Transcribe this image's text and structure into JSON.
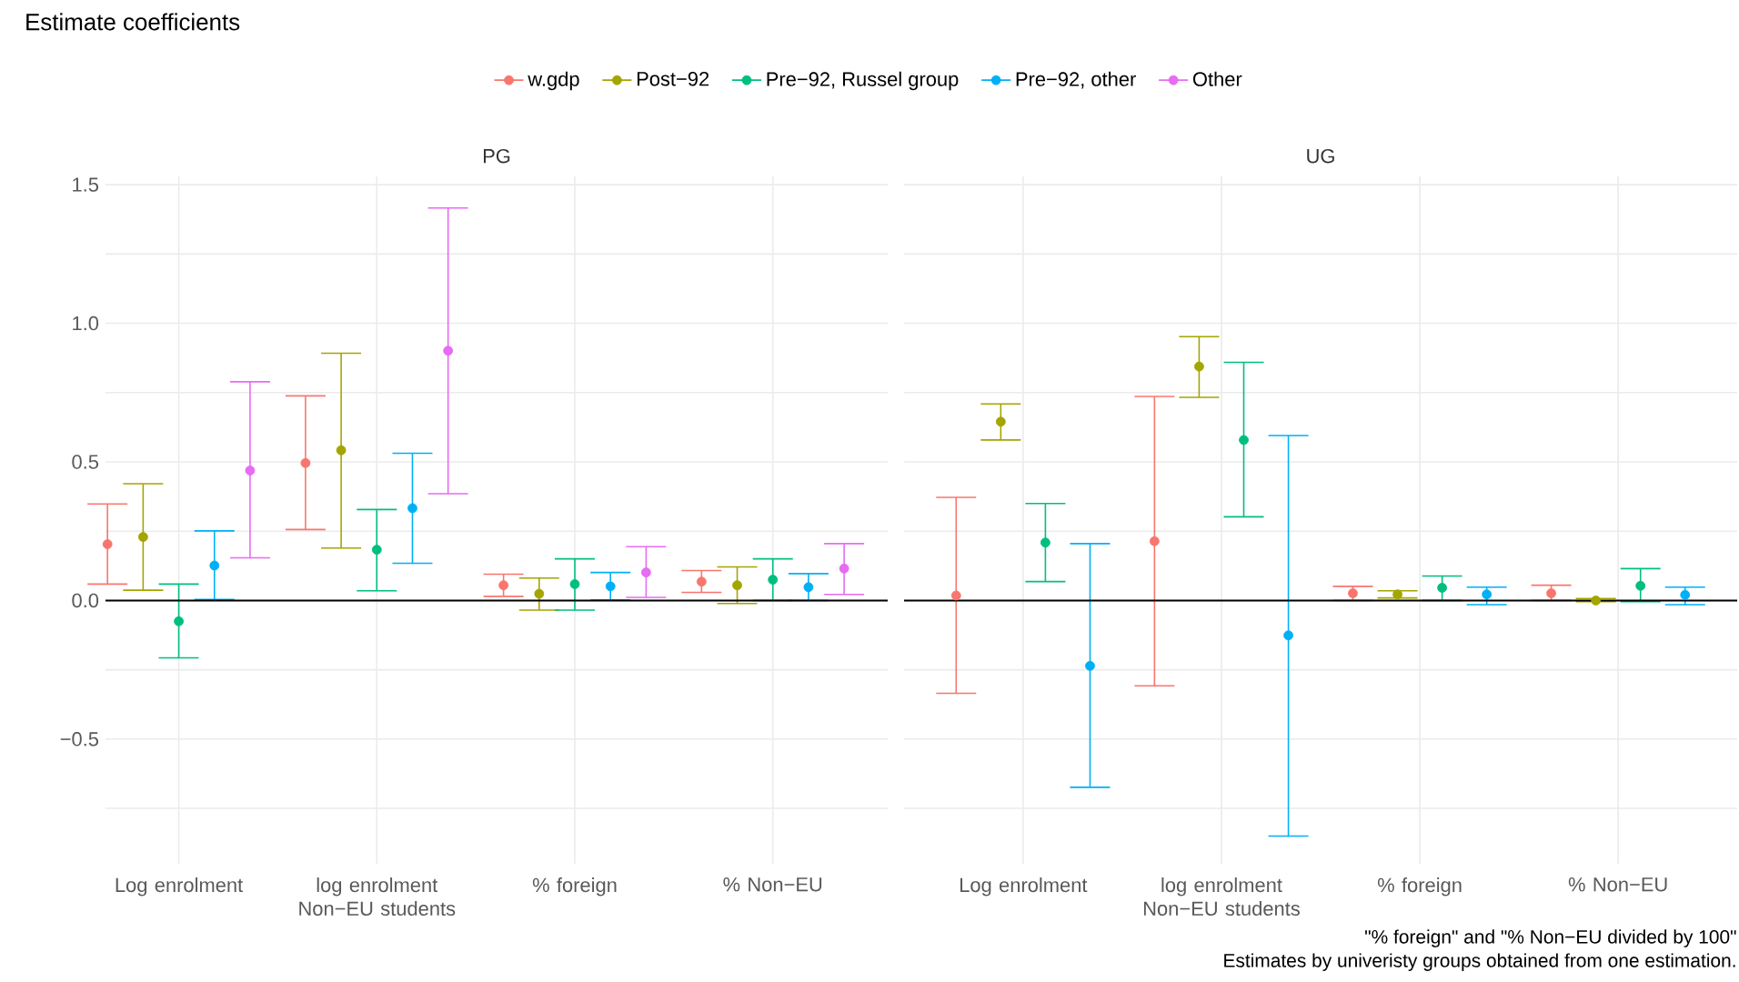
{
  "chart_data": [
    {
      "type": "scatter",
      "title": "Estimate coefficients",
      "subtitle": "PG",
      "categories": [
        "Log enrolment",
        "log enrolment Non−EU students",
        "% foreign",
        "% Non−EU"
      ],
      "series": [
        {
          "name": "w.gdp",
          "color": "#f8766d",
          "values": [
            0.203,
            0.496,
            0.055,
            0.068
          ],
          "errors": [
            [
              0.059,
              0.348
            ],
            [
              0.256,
              0.738
            ],
            [
              0.015,
              0.095
            ],
            [
              0.029,
              0.108
            ]
          ]
        },
        {
          "name": "Post−92",
          "color": "#a3a500",
          "values": [
            0.229,
            0.542,
            0.024,
            0.055
          ],
          "errors": [
            [
              0.037,
              0.421
            ],
            [
              0.189,
              0.892
            ],
            [
              -0.035,
              0.081
            ],
            [
              -0.011,
              0.121
            ]
          ]
        },
        {
          "name": "Pre−92, Russel group",
          "color": "#00bf7d",
          "values": [
            -0.075,
            0.183,
            0.059,
            0.075
          ],
          "errors": [
            [
              -0.207,
              0.059
            ],
            [
              0.035,
              0.328
            ],
            [
              -0.035,
              0.15
            ],
            [
              0.0,
              0.15
            ]
          ]
        },
        {
          "name": "Pre−92, other",
          "color": "#00b0f6",
          "values": [
            0.126,
            0.333,
            0.051,
            0.048
          ],
          "errors": [
            [
              0.004,
              0.251
            ],
            [
              0.134,
              0.531
            ],
            [
              0.002,
              0.101
            ],
            [
              0.0,
              0.097
            ]
          ]
        },
        {
          "name": "Other",
          "color": "#e76bf3",
          "values": [
            0.469,
            0.901,
            0.101,
            0.115
          ],
          "errors": [
            [
              0.154,
              0.789
            ],
            [
              0.385,
              1.416
            ],
            [
              0.011,
              0.194
            ],
            [
              0.022,
              0.205
            ]
          ]
        }
      ],
      "ylim": [
        -0.95,
        1.53
      ],
      "yticks": [
        {
          "value": -0.75,
          "label": null
        },
        {
          "value": -0.5,
          "label": "−0.5"
        },
        {
          "value": -0.25,
          "label": null
        },
        {
          "value": 0,
          "label": "0.0"
        },
        {
          "value": 0.25,
          "label": null
        },
        {
          "value": 0.5,
          "label": "0.5"
        },
        {
          "value": 0.75,
          "label": null
        },
        {
          "value": 1,
          "label": "1.0"
        },
        {
          "value": 1.25,
          "label": null
        },
        {
          "value": 1.5,
          "label": "1.5"
        }
      ],
      "ref_lines": [
        {
          "axis": "y",
          "value": 0,
          "color": "#000000"
        }
      ],
      "grid": true,
      "legend": "top",
      "marker": "circle"
    },
    {
      "type": "scatter",
      "subtitle": "UG",
      "categories": [
        "Log enrolment",
        "log enrolment Non−EU students",
        "% foreign",
        "% Non−EU"
      ],
      "series": [
        {
          "color": "#f8766d",
          "values": [
            0.018,
            0.214,
            0.026,
            0.026
          ],
          "errors": [
            [
              -0.335,
              0.372
            ],
            [
              -0.308,
              0.736
            ],
            [
              0.0,
              0.051
            ],
            [
              0.0,
              0.055
            ]
          ]
        },
        {
          "color": "#a3a500",
          "values": [
            0.645,
            0.844,
            0.022,
            0.0
          ],
          "errors": [
            [
              0.579,
              0.709
            ],
            [
              0.733,
              0.952
            ],
            [
              0.009,
              0.035
            ],
            [
              -0.004,
              0.007
            ]
          ]
        },
        {
          "color": "#00bf7d",
          "values": [
            0.209,
            0.579,
            0.046,
            0.053
          ],
          "errors": [
            [
              0.068,
              0.35
            ],
            [
              0.302,
              0.859
            ],
            [
              0.0,
              0.088
            ],
            [
              -0.004,
              0.115
            ]
          ]
        },
        {
          "color": "#00b0f6",
          "values": [
            -0.236,
            -0.126,
            0.022,
            0.02
          ],
          "errors": [
            [
              -0.674,
              0.205
            ],
            [
              -0.85,
              0.595
            ],
            [
              -0.015,
              0.048
            ],
            [
              -0.015,
              0.048
            ]
          ]
        }
      ],
      "ylim": [
        -0.95,
        1.53
      ],
      "yticks": [
        {
          "value": -0.75,
          "label": null
        },
        {
          "value": -0.5,
          "label": null
        },
        {
          "value": -0.25,
          "label": null
        },
        {
          "value": 0,
          "label": null
        },
        {
          "value": 0.25,
          "label": null
        },
        {
          "value": 0.5,
          "label": null
        },
        {
          "value": 0.75,
          "label": null
        },
        {
          "value": 1,
          "label": null
        },
        {
          "value": 1.25,
          "label": null
        },
        {
          "value": 1.5,
          "label": null
        }
      ],
      "tick_labels": "x",
      "ref_lines": [
        {
          "axis": "y",
          "value": 0,
          "color": "#000000"
        }
      ],
      "annotations": [
        "\"% foreign\" and \"% Non−EU divided by 100\"",
        "Estimates by univeristy groups obtained from one estimation."
      ],
      "grid": true,
      "marker": "circle"
    }
  ]
}
